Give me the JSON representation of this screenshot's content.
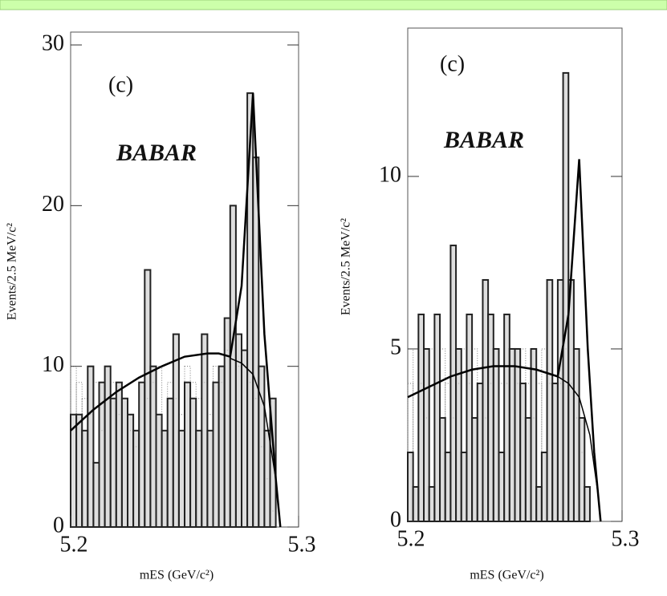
{
  "chart_data": [
    {
      "type": "histogram",
      "label": "(c)",
      "logo": "BABAR",
      "y_label": "Events/2.5 MeV/c²",
      "x_label": "mES (GeV/c²)",
      "bins": [
        5.2,
        5.2025,
        5.205,
        5.2075,
        5.21,
        5.2125,
        5.215,
        5.2175,
        5.22,
        5.2225,
        5.225,
        5.2275,
        5.23,
        5.2325,
        5.235,
        5.2375,
        5.24,
        5.2425,
        5.245,
        5.2475,
        5.25,
        5.2525,
        5.255,
        5.2575,
        5.26,
        5.2625,
        5.265,
        5.2675,
        5.27,
        5.2725,
        5.275,
        5.2775,
        5.28,
        5.2825,
        5.285,
        5.2875,
        5.29
      ],
      "counts": [
        7,
        7,
        6,
        10,
        4,
        9,
        10,
        8,
        9,
        8,
        7,
        6,
        9,
        16,
        10,
        7,
        6,
        8,
        12,
        6,
        9,
        8,
        6,
        12,
        6,
        9,
        10,
        13,
        20,
        12,
        11,
        27,
        23,
        10,
        6,
        8
      ],
      "background_counts": [
        10,
        9,
        8,
        7,
        9,
        6,
        8,
        9,
        7,
        8,
        6,
        5,
        9,
        8,
        9,
        10,
        6,
        9,
        8,
        7,
        10,
        9,
        8,
        9,
        7,
        10,
        9,
        11,
        12,
        10,
        11,
        9,
        8,
        5,
        3,
        1
      ],
      "fit": {
        "x": [
          5.2,
          5.21,
          5.22,
          5.23,
          5.24,
          5.25,
          5.26,
          5.265,
          5.27,
          5.275,
          5.28,
          5.285,
          5.29,
          5.292
        ],
        "y": [
          6,
          7.3,
          8.4,
          9.3,
          10,
          10.6,
          10.8,
          10.8,
          10.6,
          15,
          27,
          12,
          3,
          0
        ]
      },
      "background_fit": {
        "x": [
          5.27,
          5.275,
          5.28,
          5.285,
          5.29,
          5.292
        ],
        "y": [
          10.5,
          10.2,
          9.5,
          7.5,
          3,
          0
        ]
      },
      "xlim": [
        5.2,
        5.3
      ],
      "xticks": [
        5.2,
        5.3
      ],
      "ylim": [
        0,
        30.8
      ],
      "yticks": [
        0,
        10,
        20,
        30
      ]
    },
    {
      "type": "histogram",
      "label": "(c)",
      "logo": "BABAR",
      "y_label": "Events/2.5 MeV/c²",
      "x_label": "mES (GeV/c²)",
      "bins": [
        5.2,
        5.2025,
        5.205,
        5.2075,
        5.21,
        5.2125,
        5.215,
        5.2175,
        5.22,
        5.2225,
        5.225,
        5.2275,
        5.23,
        5.2325,
        5.235,
        5.2375,
        5.24,
        5.2425,
        5.245,
        5.2475,
        5.25,
        5.2525,
        5.255,
        5.2575,
        5.26,
        5.2625,
        5.265,
        5.2675,
        5.27,
        5.2725,
        5.275,
        5.2775,
        5.28,
        5.2825,
        5.285,
        5.2875
      ],
      "counts": [
        2,
        1,
        6,
        5,
        1,
        6,
        3,
        2,
        8,
        5,
        2,
        6,
        3,
        4,
        7,
        6,
        5,
        2,
        6,
        5,
        5,
        4,
        3,
        5,
        1,
        2,
        7,
        4,
        7,
        13,
        7,
        5,
        3,
        1,
        0
      ],
      "background_counts": [
        4,
        5,
        4,
        3,
        5,
        4,
        5,
        4,
        3,
        4,
        5,
        4,
        5,
        4,
        3,
        4,
        5,
        4,
        4,
        5,
        4,
        5,
        4,
        3,
        4,
        5,
        4,
        4,
        4,
        5,
        4,
        3,
        2,
        1,
        0
      ],
      "fit": {
        "x": [
          5.2,
          5.21,
          5.22,
          5.23,
          5.24,
          5.25,
          5.26,
          5.27,
          5.275,
          5.28,
          5.284,
          5.287,
          5.29
        ],
        "y": [
          3.6,
          3.9,
          4.2,
          4.4,
          4.5,
          4.5,
          4.4,
          4.2,
          6,
          10.5,
          5,
          2,
          0
        ]
      },
      "background_fit": {
        "x": [
          5.27,
          5.275,
          5.28,
          5.285,
          5.289,
          5.29
        ],
        "y": [
          4.2,
          4,
          3.6,
          2.5,
          0.7,
          0
        ]
      },
      "xlim": [
        5.2,
        5.3
      ],
      "xticks": [
        5.2,
        5.3
      ],
      "ylim": [
        0,
        14.3
      ],
      "yticks": [
        0,
        5,
        10
      ]
    }
  ]
}
